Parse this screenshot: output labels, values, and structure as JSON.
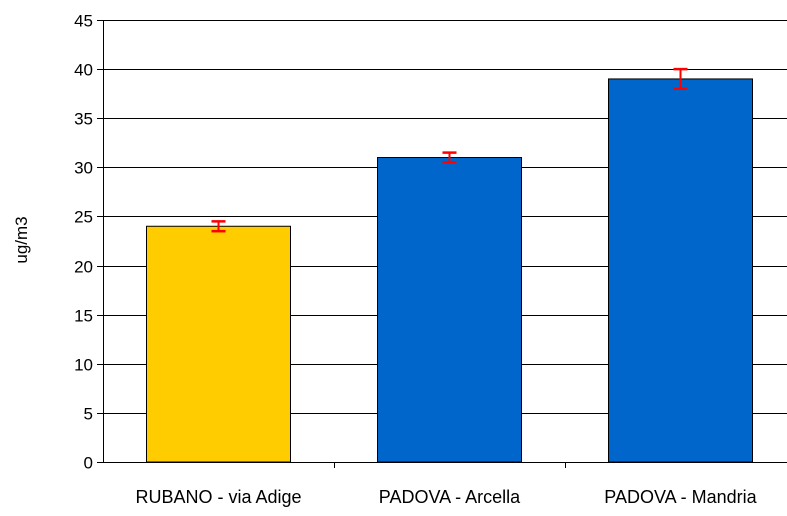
{
  "chart_data": {
    "type": "bar",
    "title": "",
    "xlabel": "",
    "ylabel": "ug/m3",
    "ylim": [
      0,
      45
    ],
    "yticks": [
      0,
      5,
      10,
      15,
      20,
      25,
      30,
      35,
      40,
      45
    ],
    "grid": true,
    "legend": "none",
    "categories": [
      "RUBANO - via Adige",
      "PADOVA - Arcella",
      "PADOVA - Mandria"
    ],
    "values": [
      24,
      31,
      39
    ],
    "error_bars": [
      {
        "low": 23.5,
        "high": 24.5
      },
      {
        "low": 30.5,
        "high": 31.5
      },
      {
        "low": 38,
        "high": 40
      }
    ],
    "colors": {
      "bars": [
        "#FFCC00",
        "#0066CC",
        "#0066CC"
      ],
      "bar_stroke": "#000000",
      "error_bar": "#FF0000",
      "grid": "#000000",
      "axis": "#000000"
    }
  }
}
